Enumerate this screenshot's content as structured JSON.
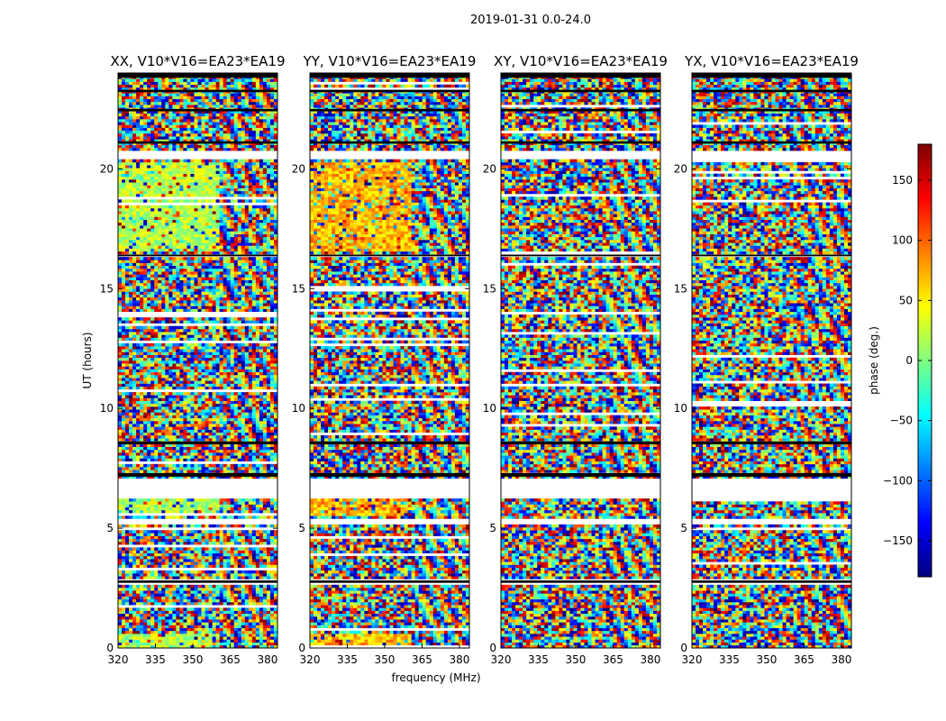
{
  "chart_data": {
    "type": "heatmap",
    "title": "2019-01-31 0.0-24.0",
    "xlabel": "frequency (MHz)",
    "ylabel": "UT (hours)",
    "xlim": [
      320,
      384
    ],
    "ylim": [
      0,
      24
    ],
    "x_ticks": [
      320,
      335,
      350,
      365,
      380
    ],
    "y_ticks": [
      0,
      5,
      10,
      15,
      20
    ],
    "panels": [
      {
        "name": "XX",
        "title": "XX, V10*V16=EA23*EA19",
        "base_phase": 20
      },
      {
        "name": "YY",
        "title": "YY, V10*V16=EA23*EA19",
        "base_phase": 70
      },
      {
        "name": "XY",
        "title": "XY, V10*V16=EA23*EA19",
        "base_phase": null
      },
      {
        "name": "YX",
        "title": "YX, V10*V16=EA23*EA19",
        "base_phase": null
      }
    ],
    "colorbar": {
      "label": "phase (deg.)",
      "colormap": "jet",
      "range": [
        -180,
        180
      ],
      "ticks": [
        -150,
        -100,
        -50,
        0,
        50,
        100,
        150
      ],
      "tick_labels": [
        "−150",
        "−100",
        "−50",
        "0",
        "50",
        "100",
        "150"
      ]
    },
    "gaps_hours": [
      [
        2.65,
        2.9
      ],
      [
        5.2,
        5.45
      ],
      [
        6.3,
        7.1
      ],
      [
        16.3,
        16.45
      ],
      [
        20.45,
        20.7
      ]
    ],
    "black_bands_hours": [
      [
        2.72,
        2.82
      ],
      [
        7.15,
        7.3
      ],
      [
        8.5,
        8.62
      ],
      [
        16.35,
        16.42
      ],
      [
        21.05,
        21.15
      ],
      [
        22.4,
        22.5
      ],
      [
        23.2,
        23.3
      ],
      [
        23.8,
        24.0
      ]
    ]
  }
}
